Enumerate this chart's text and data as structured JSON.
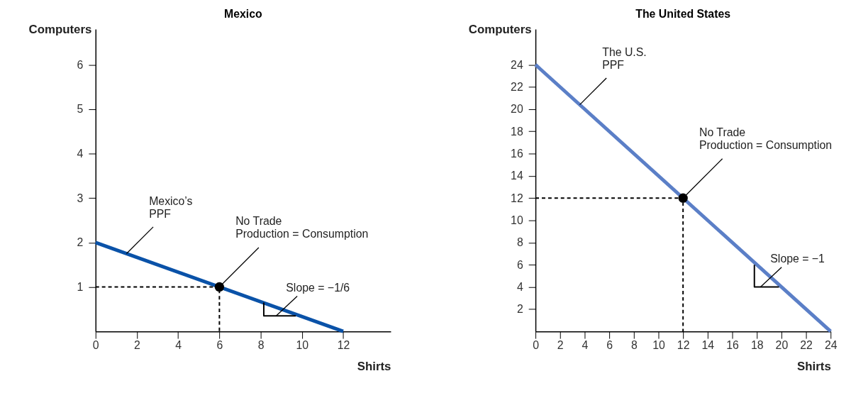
{
  "chart_data": [
    {
      "type": "line",
      "title": "Mexico",
      "xlabel": "Shirts",
      "ylabel": "Computers",
      "xlim": [
        0,
        14.3
      ],
      "ylim": [
        0,
        6.8
      ],
      "xticks": [
        0,
        2,
        4,
        6,
        8,
        10,
        12
      ],
      "yticks": [
        1,
        2,
        3,
        4,
        5,
        6
      ],
      "grid": false,
      "series": [
        {
          "color": "#0a52a8",
          "x": [
            0,
            12
          ],
          "values": [
            2,
            0
          ]
        },
        {
          "line_style": "dashed",
          "color": "#000000",
          "x": [
            0,
            6,
            6
          ],
          "values": [
            1,
            1,
            0
          ]
        },
        {
          "color": "#000000",
          "x": [
            8.15,
            8.15,
            9.7
          ],
          "values": [
            0.65,
            0.35,
            0.35
          ]
        },
        {
          "type": "scatter",
          "marker": "circle",
          "color": "#000000",
          "x": [
            6
          ],
          "values": [
            1
          ]
        }
      ],
      "annotations": [
        {
          "text": "Mexico’s\nPPF",
          "x": 1.5,
          "y": 1.75
        },
        {
          "text": "No Trade\nProduction = Consumption",
          "x": 6,
          "y": 1
        },
        {
          "text": "Slope = −1/6",
          "x": 8.75,
          "y": 0.35
        }
      ]
    },
    {
      "type": "line",
      "title": "The United States",
      "xlabel": "Shirts",
      "ylabel": "Computers",
      "xlim": [
        0,
        24
      ],
      "ylim": [
        0,
        27.2
      ],
      "xticks": [
        0,
        2,
        4,
        6,
        8,
        10,
        12,
        14,
        16,
        18,
        20,
        22,
        24
      ],
      "yticks": [
        2,
        4,
        6,
        8,
        10,
        12,
        14,
        16,
        18,
        20,
        22,
        24
      ],
      "grid": false,
      "series": [
        {
          "color": "#5b7fc7",
          "x": [
            0,
            24
          ],
          "values": [
            24,
            0
          ]
        },
        {
          "line_style": "dashed",
          "color": "#000000",
          "x": [
            0,
            12,
            12
          ],
          "values": [
            12,
            12,
            0
          ]
        },
        {
          "color": "#000000",
          "x": [
            17.8,
            17.8,
            19.8
          ],
          "values": [
            6,
            4,
            4
          ]
        },
        {
          "type": "scatter",
          "marker": "circle",
          "color": "#000000",
          "x": [
            12
          ],
          "values": [
            12
          ]
        }
      ],
      "annotations": [
        {
          "text": "The U.S.\nPPF",
          "x": 3.6,
          "y": 20.4
        },
        {
          "text": "No Trade\nProduction = Consumption",
          "x": 12,
          "y": 12
        },
        {
          "text": "Slope = −1",
          "x": 18.3,
          "y": 4
        }
      ]
    }
  ]
}
